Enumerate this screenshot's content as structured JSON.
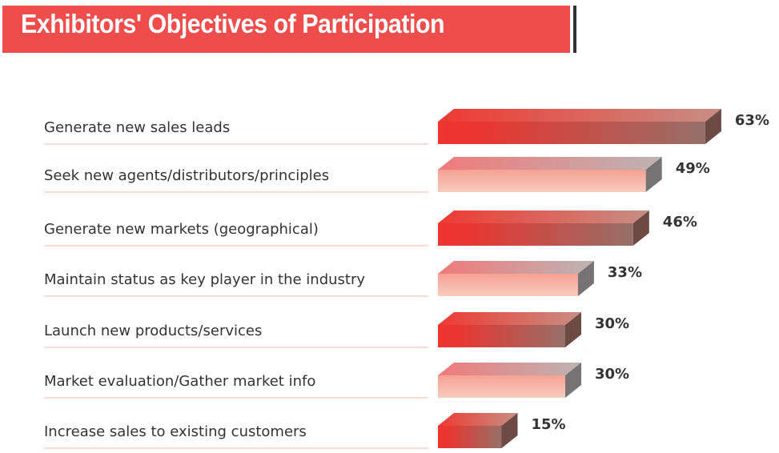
{
  "chart_data": {
    "type": "bar",
    "orientation": "horizontal",
    "title": "Exhibitors' Objectives of Participation",
    "categories": [
      "Generate new sales leads",
      "Seek new agents/distributors/principles",
      "Generate new markets (geographical)",
      "Maintain status as key player in the industry",
      "Launch new products/services",
      "Market evaluation/Gather market info",
      "Increase sales to existing customers"
    ],
    "values": [
      63,
      49,
      46,
      33,
      30,
      30,
      15
    ],
    "value_labels": [
      "63%",
      "49%",
      "46%",
      "33%",
      "30%",
      "30%",
      "15%"
    ],
    "unit": "%",
    "xlabel": "",
    "ylabel": "",
    "colors": {
      "title_bg": "#ef4c4c",
      "dark_start": "#ee3530",
      "dark_end": "#8f6a66",
      "light_start": "#f07a7a",
      "light_end": "#bdb3b3",
      "rule": "#f4b8a8",
      "text": "#333333"
    }
  }
}
